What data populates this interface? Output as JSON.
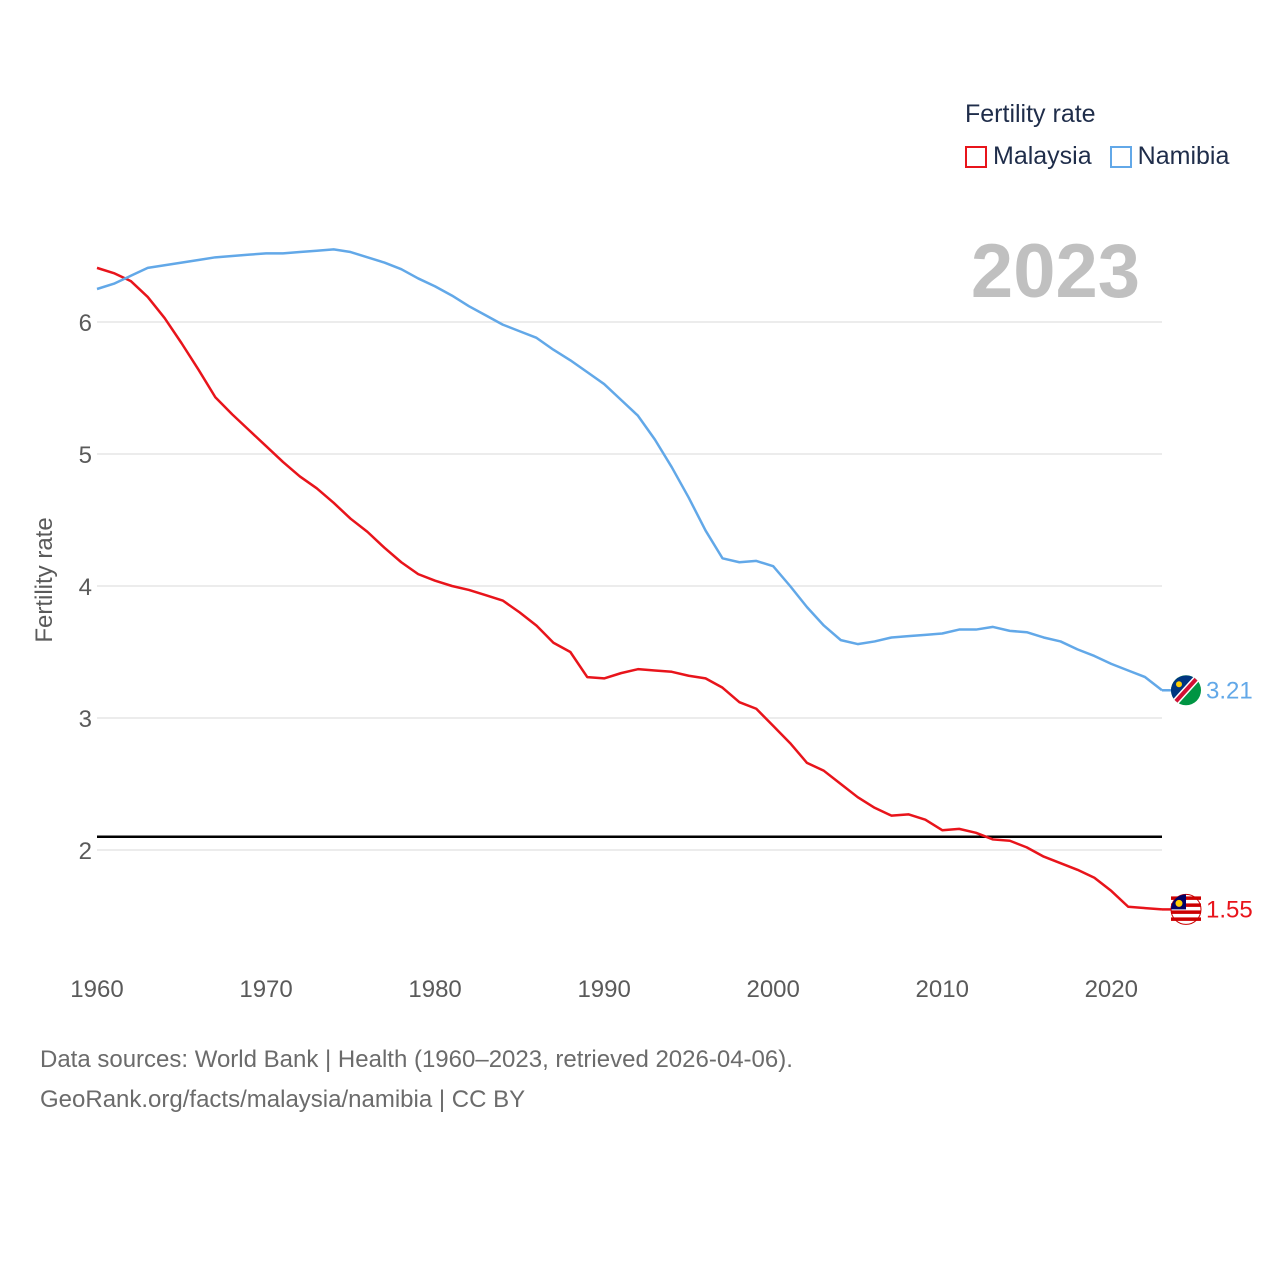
{
  "legend": {
    "title": "Fertility rate",
    "items": [
      {
        "name": "Malaysia",
        "color": "#e8141b"
      },
      {
        "name": "Namibia",
        "color": "#62a8e8"
      }
    ]
  },
  "big_year": "2023",
  "footer": {
    "line1": "Data sources: World Bank | Health (1960–2023, retrieved 2026-04-06).",
    "line2": "GeoRank.org/facts/malaysia/namibia | CC BY"
  },
  "chart_data": {
    "type": "line",
    "title": "",
    "xlabel": "",
    "ylabel": "Fertility rate",
    "xlim": [
      1960,
      2023
    ],
    "ylim": [
      1.3,
      6.8
    ],
    "x_ticks": [
      1960,
      1970,
      1980,
      1990,
      2000,
      2010,
      2020
    ],
    "y_ticks": [
      2,
      3,
      4,
      5,
      6
    ],
    "reference_line": 2.1,
    "x": [
      1960,
      1961,
      1962,
      1963,
      1964,
      1965,
      1966,
      1967,
      1968,
      1969,
      1970,
      1971,
      1972,
      1973,
      1974,
      1975,
      1976,
      1977,
      1978,
      1979,
      1980,
      1981,
      1982,
      1983,
      1984,
      1985,
      1986,
      1987,
      1988,
      1989,
      1990,
      1991,
      1992,
      1993,
      1994,
      1995,
      1996,
      1997,
      1998,
      1999,
      2000,
      2001,
      2002,
      2003,
      2004,
      2005,
      2006,
      2007,
      2008,
      2009,
      2010,
      2011,
      2012,
      2013,
      2014,
      2015,
      2016,
      2017,
      2018,
      2019,
      2020,
      2021,
      2022,
      2023
    ],
    "series": [
      {
        "name": "Malaysia",
        "color": "#e8141b",
        "end_label": "1.55",
        "values": [
          6.41,
          6.37,
          6.31,
          6.19,
          6.03,
          5.84,
          5.64,
          5.43,
          5.3,
          5.18,
          5.06,
          4.94,
          4.83,
          4.74,
          4.63,
          4.51,
          4.41,
          4.29,
          4.18,
          4.09,
          4.04,
          4.0,
          3.97,
          3.93,
          3.89,
          3.8,
          3.7,
          3.57,
          3.5,
          3.31,
          3.3,
          3.34,
          3.37,
          3.36,
          3.35,
          3.32,
          3.3,
          3.23,
          3.12,
          3.07,
          2.94,
          2.81,
          2.66,
          2.6,
          2.5,
          2.4,
          2.32,
          2.26,
          2.27,
          2.23,
          2.15,
          2.16,
          2.13,
          2.08,
          2.07,
          2.02,
          1.95,
          1.9,
          1.85,
          1.79,
          1.69,
          1.57,
          1.56,
          1.55
        ]
      },
      {
        "name": "Namibia",
        "color": "#62a8e8",
        "end_label": "3.21",
        "values": [
          6.25,
          6.29,
          6.35,
          6.41,
          6.43,
          6.45,
          6.47,
          6.49,
          6.5,
          6.51,
          6.52,
          6.52,
          6.53,
          6.54,
          6.55,
          6.53,
          6.49,
          6.45,
          6.4,
          6.33,
          6.27,
          6.2,
          6.12,
          6.05,
          5.98,
          5.93,
          5.88,
          5.79,
          5.71,
          5.62,
          5.53,
          5.41,
          5.29,
          5.11,
          4.9,
          4.67,
          4.42,
          4.21,
          4.18,
          4.19,
          4.15,
          4.0,
          3.84,
          3.7,
          3.59,
          3.56,
          3.58,
          3.61,
          3.62,
          3.63,
          3.64,
          3.67,
          3.67,
          3.69,
          3.66,
          3.65,
          3.61,
          3.58,
          3.52,
          3.47,
          3.41,
          3.36,
          3.31,
          3.21
        ]
      }
    ]
  }
}
